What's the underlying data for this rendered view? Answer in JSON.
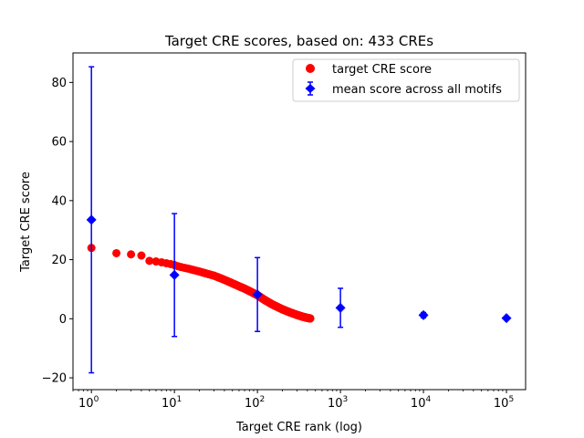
{
  "chart_data": {
    "type": "scatter",
    "title": "Target CRE scores, based on: 433 CREs",
    "xlabel": "Target CRE rank (log)",
    "ylabel": "Target CRE score",
    "xscale": "log",
    "xlim": [
      0.6,
      170000
    ],
    "ylim": [
      -24,
      90
    ],
    "yticks": [
      -20,
      0,
      20,
      40,
      60,
      80
    ],
    "xtick_base": "10",
    "xtick_exponents": [
      "0",
      "1",
      "2",
      "3",
      "4",
      "5"
    ],
    "grid": false,
    "legend_position": "top-right",
    "series": [
      {
        "name": "target CRE score",
        "kind": "points",
        "color": "#ff0000",
        "curve": [
          [
            1,
            24.0
          ],
          [
            2,
            22.2
          ],
          [
            3,
            21.8
          ],
          [
            4,
            21.4
          ],
          [
            5,
            19.6
          ],
          [
            6,
            19.4
          ],
          [
            7,
            19.1
          ],
          [
            8,
            18.8
          ],
          [
            9,
            18.5
          ],
          [
            10,
            18.2
          ],
          [
            11,
            17.8
          ],
          [
            12,
            17.5
          ],
          [
            15,
            16.9
          ],
          [
            20,
            16.0
          ],
          [
            25,
            15.2
          ],
          [
            30,
            14.6
          ],
          [
            40,
            13.2
          ],
          [
            50,
            12.0
          ],
          [
            60,
            11.0
          ],
          [
            70,
            10.2
          ],
          [
            80,
            9.4
          ],
          [
            100,
            8.0
          ],
          [
            120,
            6.5
          ],
          [
            150,
            4.9
          ],
          [
            200,
            3.2
          ],
          [
            250,
            2.1
          ],
          [
            300,
            1.3
          ],
          [
            350,
            0.7
          ],
          [
            400,
            0.3
          ],
          [
            433,
            0.1
          ]
        ]
      },
      {
        "name": "mean score across all motifs",
        "kind": "errorbar",
        "color": "#0000ff",
        "points": [
          {
            "x": 1,
            "y": 33.5,
            "err": 51.8
          },
          {
            "x": 10,
            "y": 14.8,
            "err": 20.8
          },
          {
            "x": 100,
            "y": 8.2,
            "err": 12.5
          },
          {
            "x": 1000,
            "y": 3.7,
            "err": 6.6
          },
          {
            "x": 10000,
            "y": 1.2,
            "err": 0.9
          },
          {
            "x": 100000,
            "y": 0.2,
            "err": 0.3
          }
        ]
      }
    ]
  }
}
